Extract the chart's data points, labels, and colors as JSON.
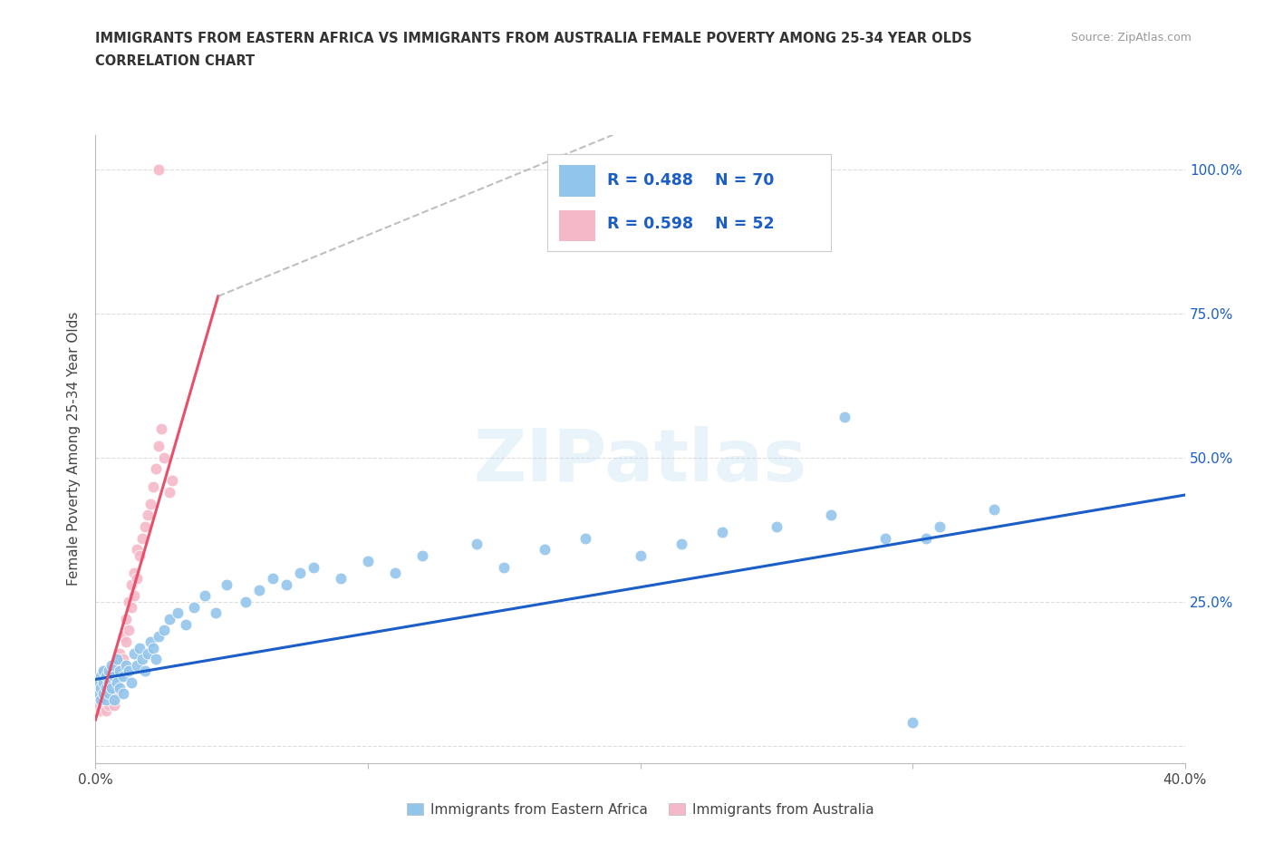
{
  "title_line1": "IMMIGRANTS FROM EASTERN AFRICA VS IMMIGRANTS FROM AUSTRALIA FEMALE POVERTY AMONG 25-34 YEAR OLDS",
  "title_line2": "CORRELATION CHART",
  "source": "Source: ZipAtlas.com",
  "ylabel": "Female Poverty Among 25-34 Year Olds",
  "xlim": [
    0.0,
    0.4
  ],
  "ylim": [
    -0.03,
    1.06
  ],
  "xtick_positions": [
    0.0,
    0.1,
    0.2,
    0.3,
    0.4
  ],
  "xticklabels": [
    "0.0%",
    "",
    "",
    "",
    "40.0%"
  ],
  "ytick_positions": [
    0.0,
    0.25,
    0.5,
    0.75,
    1.0
  ],
  "ytick_labels_right": [
    "",
    "25.0%",
    "50.0%",
    "75.0%",
    "100.0%"
  ],
  "blue_R": 0.488,
  "blue_N": 70,
  "pink_R": 0.598,
  "pink_N": 52,
  "blue_color": "#92C5EC",
  "pink_color": "#F5B8C8",
  "blue_line_color": "#1B5EC7",
  "pink_line_color": "#E8506A",
  "watermark": "ZIPatlas",
  "legend_label_blue": "Immigrants from Eastern Africa",
  "legend_label_pink": "Immigrants from Australia",
  "background_color": "#FFFFFF",
  "grid_color": "#DDDDDD",
  "axis_color": "#BBBBBB",
  "right_axis_color": "#1B5EC7",
  "title_color": "#333333",
  "source_color": "#999999",
  "blue_scatter_x": [
    0.001,
    0.001,
    0.002,
    0.002,
    0.002,
    0.003,
    0.003,
    0.003,
    0.004,
    0.004,
    0.004,
    0.005,
    0.005,
    0.005,
    0.006,
    0.006,
    0.007,
    0.007,
    0.008,
    0.008,
    0.009,
    0.009,
    0.01,
    0.01,
    0.011,
    0.012,
    0.013,
    0.014,
    0.015,
    0.016,
    0.017,
    0.018,
    0.019,
    0.02,
    0.021,
    0.022,
    0.023,
    0.025,
    0.027,
    0.03,
    0.033,
    0.036,
    0.04,
    0.044,
    0.048,
    0.055,
    0.06,
    0.065,
    0.07,
    0.075,
    0.08,
    0.09,
    0.1,
    0.11,
    0.12,
    0.14,
    0.15,
    0.165,
    0.18,
    0.2,
    0.215,
    0.23,
    0.25,
    0.27,
    0.29,
    0.31,
    0.33,
    0.275,
    0.305,
    0.3
  ],
  "blue_scatter_y": [
    0.09,
    0.11,
    0.1,
    0.12,
    0.08,
    0.11,
    0.09,
    0.13,
    0.1,
    0.08,
    0.12,
    0.11,
    0.09,
    0.13,
    0.1,
    0.14,
    0.12,
    0.08,
    0.11,
    0.15,
    0.1,
    0.13,
    0.12,
    0.09,
    0.14,
    0.13,
    0.11,
    0.16,
    0.14,
    0.17,
    0.15,
    0.13,
    0.16,
    0.18,
    0.17,
    0.15,
    0.19,
    0.2,
    0.22,
    0.23,
    0.21,
    0.24,
    0.26,
    0.23,
    0.28,
    0.25,
    0.27,
    0.29,
    0.28,
    0.3,
    0.31,
    0.29,
    0.32,
    0.3,
    0.33,
    0.35,
    0.31,
    0.34,
    0.36,
    0.33,
    0.35,
    0.37,
    0.38,
    0.4,
    0.36,
    0.38,
    0.41,
    0.57,
    0.36,
    0.04
  ],
  "pink_scatter_x": [
    0.001,
    0.001,
    0.001,
    0.002,
    0.002,
    0.002,
    0.003,
    0.003,
    0.003,
    0.003,
    0.004,
    0.004,
    0.004,
    0.005,
    0.005,
    0.005,
    0.006,
    0.006,
    0.006,
    0.007,
    0.007,
    0.007,
    0.008,
    0.008,
    0.008,
    0.009,
    0.009,
    0.01,
    0.01,
    0.011,
    0.011,
    0.012,
    0.012,
    0.013,
    0.013,
    0.014,
    0.014,
    0.015,
    0.015,
    0.016,
    0.017,
    0.018,
    0.019,
    0.02,
    0.021,
    0.022,
    0.023,
    0.024,
    0.025,
    0.027,
    0.028,
    0.023
  ],
  "pink_scatter_y": [
    0.09,
    0.07,
    0.11,
    0.08,
    0.1,
    0.06,
    0.09,
    0.11,
    0.07,
    0.13,
    0.08,
    0.1,
    0.06,
    0.09,
    0.12,
    0.07,
    0.1,
    0.08,
    0.13,
    0.09,
    0.12,
    0.07,
    0.11,
    0.14,
    0.09,
    0.12,
    0.16,
    0.15,
    0.19,
    0.18,
    0.22,
    0.2,
    0.25,
    0.24,
    0.28,
    0.26,
    0.3,
    0.29,
    0.34,
    0.33,
    0.36,
    0.38,
    0.4,
    0.42,
    0.45,
    0.48,
    0.52,
    0.55,
    0.5,
    0.44,
    0.46,
    1.0
  ],
  "blue_trend": [
    0.0,
    0.4,
    0.115,
    0.435
  ],
  "pink_solid_trend": [
    0.0,
    0.045,
    0.045,
    0.78
  ],
  "pink_dash_trend": [
    0.045,
    0.19,
    0.78,
    1.06
  ]
}
